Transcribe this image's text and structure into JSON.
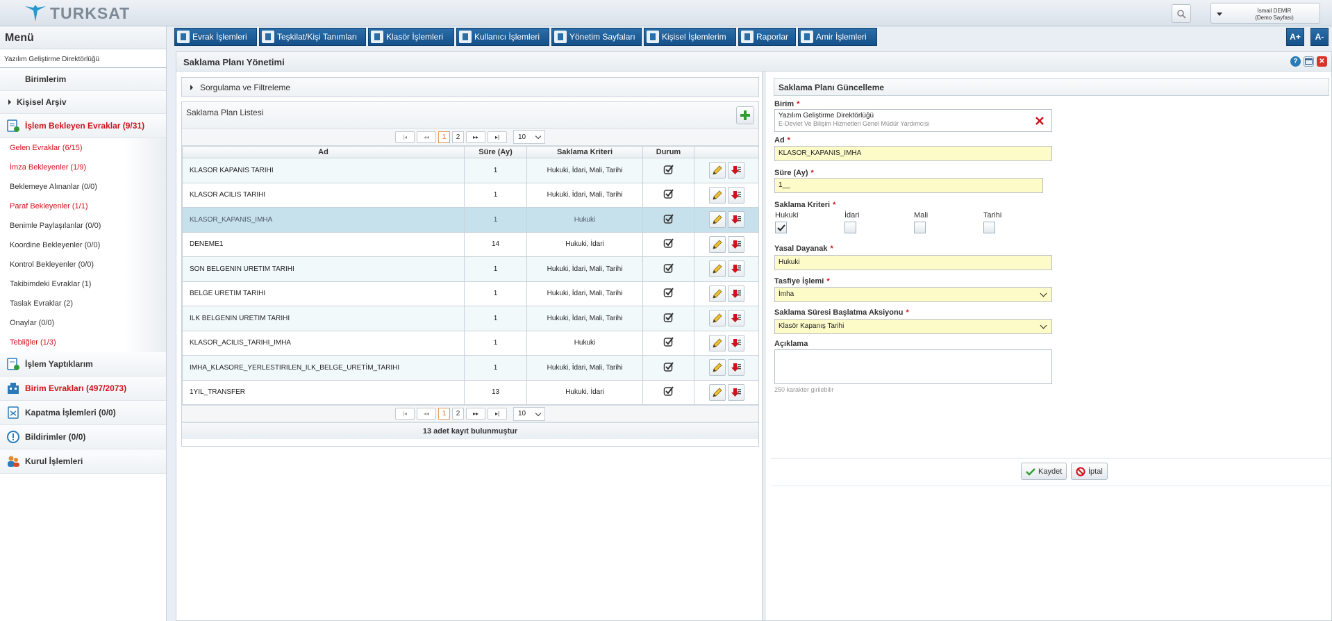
{
  "header": {
    "logo_text": "TURKSAT",
    "user_name": "İsmail DEMİR",
    "user_sub": "(Demo Sayfası)"
  },
  "sidebar": {
    "title": "Menü",
    "unit": "Yazılım Geliştirme Direktörlüğü",
    "birimlerim": "Birimlerim",
    "kisisel_arsiv": "Kişisel Arşiv",
    "bekleyen": "İşlem Bekleyen Evraklar (9/31)",
    "sub_items": [
      {
        "label": "Gelen Evraklar (6/15)",
        "red": true
      },
      {
        "label": "İmza Bekleyenler (1/9)",
        "red": true
      },
      {
        "label": "Beklemeye Alınanlar (0/0)",
        "red": false
      },
      {
        "label": "Paraf Bekleyenler (1/1)",
        "red": true
      },
      {
        "label": "Benimle Paylaşılanlar (0/0)",
        "red": false
      },
      {
        "label": "Koordine Bekleyenler (0/0)",
        "red": false
      },
      {
        "label": "Kontrol Bekleyenler (0/0)",
        "red": false
      },
      {
        "label": "Takibimdeki Evraklar (1)",
        "red": false
      },
      {
        "label": "Taslak Evraklar (2)",
        "red": false
      },
      {
        "label": "Onaylar (0/0)",
        "red": false
      },
      {
        "label": "Tebliğler (1/3)",
        "red": true
      }
    ],
    "islem_yaptiklarim": "İşlem Yaptıklarım",
    "birim_evraklari": "Birim Evrakları (497/2073)",
    "kapatma": "Kapatma İşlemleri (0/0)",
    "bildirimler": "Bildirimler (0/0)",
    "kurul": "Kurul İşlemleri"
  },
  "menubar": {
    "items": [
      "Evrak İşlemleri",
      "Teşkilat/Kişi Tanımları",
      "Klasör İşlemleri",
      "Kullanıcı İşlemleri",
      "Yönetim Sayfaları",
      "Kişisel İşlemlerim",
      "Raporlar",
      "Amir İşlemleri"
    ],
    "font_plus": "A+",
    "font_minus": "A-"
  },
  "page": {
    "title": "Saklama Planı Yönetimi",
    "filter_label": "Sorgulama ve Filtreleme",
    "list_title": "Saklama Plan Listesi",
    "pager": {
      "first": "|◂",
      "prev": "◂◂",
      "next": "▸▸",
      "last": "▸|",
      "pages": [
        "1",
        "2"
      ],
      "page_size": "10"
    },
    "columns": [
      "Ad",
      "Süre (Ay)",
      "Saklama Kriteri",
      "Durum",
      ""
    ],
    "rows": [
      {
        "ad": "KLASOR KAPANIS TARIHI",
        "sure": "1",
        "kriter": "Hukuki, İdari, Mali, Tarihi"
      },
      {
        "ad": "KLASOR ACILIS TARIHI",
        "sure": "1",
        "kriter": "Hukuki, İdari, Mali, Tarihi"
      },
      {
        "ad": "KLASOR_KAPANIS_IMHA",
        "sure": "1",
        "kriter": "Hukuki"
      },
      {
        "ad": "DENEME1",
        "sure": "14",
        "kriter": "Hukuki, İdari"
      },
      {
        "ad": "SON BELGENIN URETIM TARIHI",
        "sure": "1",
        "kriter": "Hukuki, İdari, Mali, Tarihi"
      },
      {
        "ad": "BELGE URETIM TARIHI",
        "sure": "1",
        "kriter": "Hukuki, İdari, Mali, Tarihi"
      },
      {
        "ad": "ILK BELGENIN URETIM TARIHI",
        "sure": "1",
        "kriter": "Hukuki, İdari, Mali, Tarihi"
      },
      {
        "ad": "KLASOR_ACILIS_TARIHI_IMHA",
        "sure": "1",
        "kriter": "Hukuki"
      },
      {
        "ad": "IMHA_KLASORE_YERLESTIRILEN_ILK_BELGE_URETİM_TARIHI",
        "sure": "1",
        "kriter": "Hukuki, İdari, Mali, Tarihi"
      },
      {
        "ad": "1YIL_TRANSFER",
        "sure": "13",
        "kriter": "Hukuki, İdari"
      }
    ],
    "footer": "13 adet kayıt bulunmuştur"
  },
  "form": {
    "title": "Saklama Planı Güncelleme",
    "birim_label": "Birim",
    "birim_value": "Yazılım Geliştirme Direktörlüğü",
    "birim_sub": "E-Devlet Ve Bilişim Hizmetleri Genel Müdür Yardımcısı",
    "ad_label": "Ad",
    "ad_value": "KLASOR_KAPANIS_IMHA",
    "sure_label": "Süre (Ay)",
    "sure_value": "1__",
    "kriter_label": "Saklama Kriteri",
    "kriterler": [
      {
        "label": "Hukuki",
        "checked": true
      },
      {
        "label": "İdari",
        "checked": false
      },
      {
        "label": "Mali",
        "checked": false
      },
      {
        "label": "Tarihi",
        "checked": false
      }
    ],
    "yasal_label": "Yasal Dayanak",
    "yasal_value": "Hukuki",
    "tasfiye_label": "Tasfiye İşlemi",
    "tasfiye_value": "İmha",
    "aksiyon_label": "Saklama Süresi Başlatma Aksiyonu",
    "aksiyon_value": "Klasör Kapanış Tarihi",
    "aciklama_label": "Açıklama",
    "aciklama_hint": "250 karakter girilebilir",
    "save": "Kaydet",
    "cancel": "İptal"
  },
  "colors": {
    "accent": "#1a5a94",
    "required": "#d0111b",
    "field_bg": "#fdfbc8"
  }
}
